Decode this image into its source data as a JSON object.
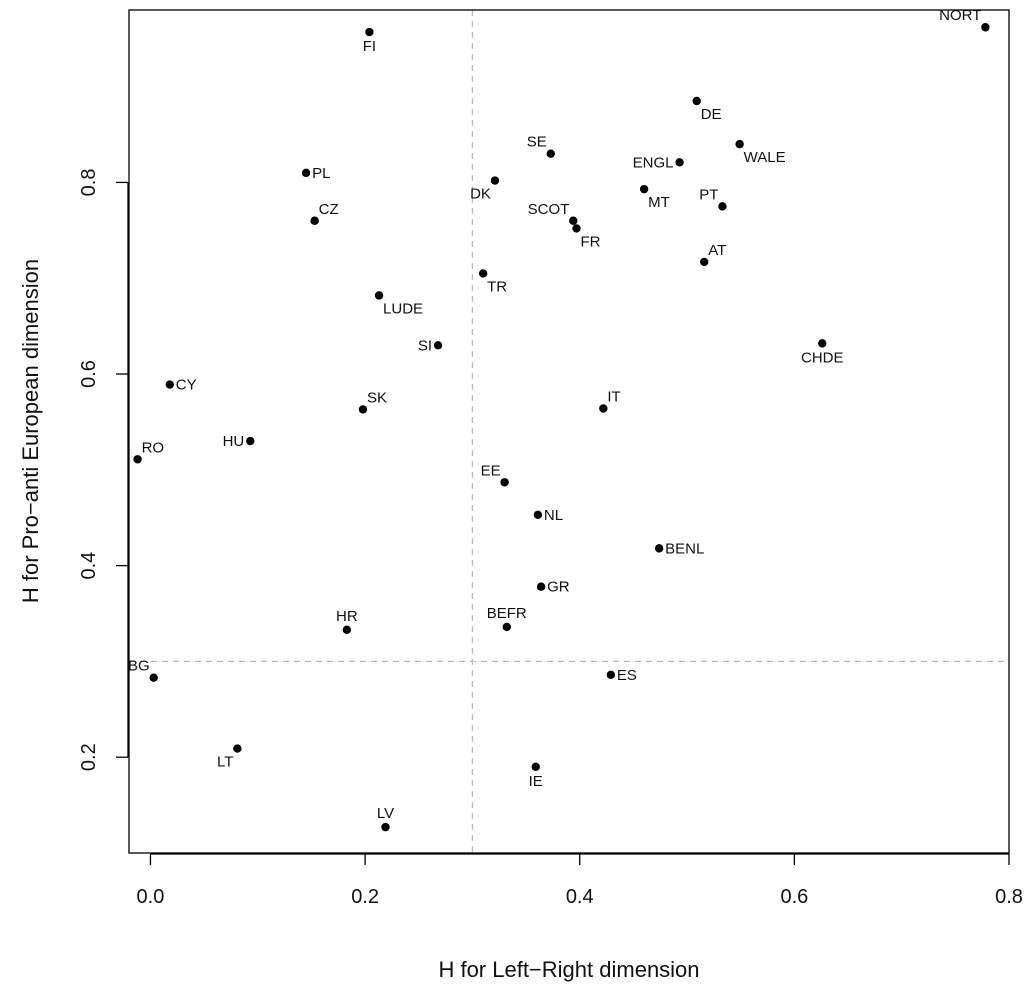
{
  "chart_data": {
    "type": "scatter",
    "title": "",
    "xlabel": "H for Left−Right dimension",
    "ylabel": "H for Pro−anti European dimension",
    "xlim": [
      -0.02,
      0.8
    ],
    "ylim": [
      0.1,
      0.98
    ],
    "xticks": [
      "0.0",
      "0.2",
      "0.4",
      "0.6",
      "0.8"
    ],
    "yticks": [
      "0.2",
      "0.4",
      "0.6",
      "0.8"
    ],
    "reference_lines": {
      "x": 0.3,
      "y": 0.3,
      "style": "dashed",
      "color": "#bbbbbb"
    },
    "grid": false,
    "point_color": "#000000",
    "points": [
      {
        "label": "NORT",
        "x": 0.778,
        "y": 0.962,
        "pos": "above-left"
      },
      {
        "label": "FI",
        "x": 0.204,
        "y": 0.957,
        "pos": "below"
      },
      {
        "label": "DE",
        "x": 0.509,
        "y": 0.885,
        "pos": "below-right"
      },
      {
        "label": "WALE",
        "x": 0.549,
        "y": 0.84,
        "pos": "below-right"
      },
      {
        "label": "SE",
        "x": 0.373,
        "y": 0.83,
        "pos": "above-left"
      },
      {
        "label": "ENGL",
        "x": 0.493,
        "y": 0.821,
        "pos": "left"
      },
      {
        "label": "PL",
        "x": 0.145,
        "y": 0.81,
        "pos": "right"
      },
      {
        "label": "DK",
        "x": 0.321,
        "y": 0.802,
        "pos": "below-left"
      },
      {
        "label": "MT",
        "x": 0.46,
        "y": 0.793,
        "pos": "below-right"
      },
      {
        "label": "PT",
        "x": 0.533,
        "y": 0.775,
        "pos": "above-left"
      },
      {
        "label": "SCOT",
        "x": 0.394,
        "y": 0.76,
        "pos": "above-left"
      },
      {
        "label": "CZ",
        "x": 0.153,
        "y": 0.76,
        "pos": "above-right"
      },
      {
        "label": "FR",
        "x": 0.397,
        "y": 0.752,
        "pos": "below-right"
      },
      {
        "label": "AT",
        "x": 0.516,
        "y": 0.717,
        "pos": "above-right"
      },
      {
        "label": "TR",
        "x": 0.31,
        "y": 0.705,
        "pos": "below-right"
      },
      {
        "label": "LUDE",
        "x": 0.213,
        "y": 0.682,
        "pos": "below-right"
      },
      {
        "label": "CHDE",
        "x": 0.626,
        "y": 0.632,
        "pos": "below"
      },
      {
        "label": "SI",
        "x": 0.268,
        "y": 0.63,
        "pos": "left"
      },
      {
        "label": "CY",
        "x": 0.018,
        "y": 0.589,
        "pos": "right"
      },
      {
        "label": "IT",
        "x": 0.422,
        "y": 0.564,
        "pos": "above-right"
      },
      {
        "label": "SK",
        "x": 0.198,
        "y": 0.563,
        "pos": "above-right"
      },
      {
        "label": "HU",
        "x": 0.093,
        "y": 0.53,
        "pos": "left"
      },
      {
        "label": "RO",
        "x": -0.012,
        "y": 0.511,
        "pos": "above-right"
      },
      {
        "label": "EE",
        "x": 0.33,
        "y": 0.487,
        "pos": "above-left"
      },
      {
        "label": "NL",
        "x": 0.361,
        "y": 0.453,
        "pos": "right"
      },
      {
        "label": "BENL",
        "x": 0.474,
        "y": 0.418,
        "pos": "right"
      },
      {
        "label": "GR",
        "x": 0.364,
        "y": 0.378,
        "pos": "right"
      },
      {
        "label": "BEFR",
        "x": 0.332,
        "y": 0.336,
        "pos": "above"
      },
      {
        "label": "HR",
        "x": 0.183,
        "y": 0.333,
        "pos": "above"
      },
      {
        "label": "ES",
        "x": 0.429,
        "y": 0.286,
        "pos": "right"
      },
      {
        "label": "BG",
        "x": 0.003,
        "y": 0.283,
        "pos": "above-left"
      },
      {
        "label": "LT",
        "x": 0.081,
        "y": 0.209,
        "pos": "below-left"
      },
      {
        "label": "IE",
        "x": 0.359,
        "y": 0.19,
        "pos": "below"
      },
      {
        "label": "LV",
        "x": 0.219,
        "y": 0.127,
        "pos": "above"
      }
    ]
  }
}
